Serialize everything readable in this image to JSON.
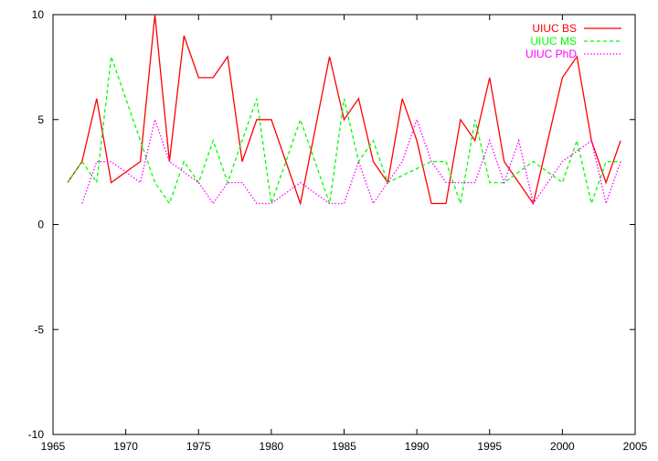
{
  "chart_data": {
    "type": "line",
    "title": "",
    "xlabel": "",
    "ylabel": "",
    "xlim": [
      1965,
      2005
    ],
    "ylim": [
      -10,
      10
    ],
    "xticks": [
      1965,
      1970,
      1975,
      1980,
      1985,
      1990,
      1995,
      2000,
      2005
    ],
    "yticks": [
      -10,
      -5,
      0,
      5,
      10
    ],
    "grid": false,
    "legend_position": "top-right",
    "series": [
      {
        "name": "UIUC BS",
        "color": "#ff0000",
        "dash": "solid",
        "x": [
          1966,
          1967,
          1968,
          1969,
          1970,
          1971,
          1972,
          1973,
          1974,
          1975,
          1976,
          1977,
          1978,
          1979,
          1980,
          1981,
          1982,
          1983,
          1984,
          1985,
          1986,
          1987,
          1988,
          1989,
          1990,
          1991,
          1992,
          1993,
          1994,
          1995,
          1996,
          1997,
          1998,
          1999,
          2000,
          2001,
          2002,
          2003,
          2004
        ],
        "y": [
          2,
          3,
          6,
          2,
          2.5,
          3,
          10,
          3,
          9,
          7,
          7,
          8,
          3,
          5,
          5,
          3,
          1,
          4.5,
          8,
          5,
          6,
          3,
          2,
          6,
          4,
          1,
          1,
          5,
          4,
          7,
          3,
          2,
          1,
          4,
          7,
          8,
          4,
          2,
          4
        ]
      },
      {
        "name": "UIUC MS",
        "color": "#00ff00",
        "dash": "dashed",
        "x": [
          1966,
          1967,
          1968,
          1969,
          1972,
          1973,
          1974,
          1975,
          1976,
          1977,
          1979,
          1980,
          1982,
          1984,
          1985,
          1986,
          1987,
          1988,
          1991,
          1992,
          1993,
          1994,
          1995,
          1996,
          1998,
          2000,
          2001,
          2002,
          2003,
          2004
        ],
        "y": [
          2,
          3,
          2,
          8,
          2,
          1,
          3,
          2,
          4,
          2,
          6,
          1,
          5,
          1,
          6,
          3,
          4,
          2,
          3,
          3,
          1,
          5,
          2,
          2,
          3,
          2,
          4,
          1,
          3,
          3
        ]
      },
      {
        "name": "UIUC PhD",
        "color": "#ff00ff",
        "dash": "dotted",
        "x": [
          1967,
          1968,
          1969,
          1970,
          1971,
          1972,
          1973,
          1974,
          1975,
          1976,
          1977,
          1978,
          1979,
          1980,
          1982,
          1984,
          1985,
          1986,
          1987,
          1988,
          1989,
          1990,
          1991,
          1992,
          1993,
          1994,
          1995,
          1996,
          1997,
          1998,
          1999,
          2000,
          2002,
          2003,
          2004
        ],
        "y": [
          1,
          3,
          3,
          2.5,
          2,
          5,
          3,
          2.5,
          2,
          1,
          2,
          2,
          1,
          1,
          2,
          1,
          1,
          3,
          1,
          2,
          3,
          5,
          3,
          2,
          2,
          2,
          4,
          2,
          4,
          1,
          2,
          3,
          4,
          1,
          3
        ]
      }
    ]
  }
}
